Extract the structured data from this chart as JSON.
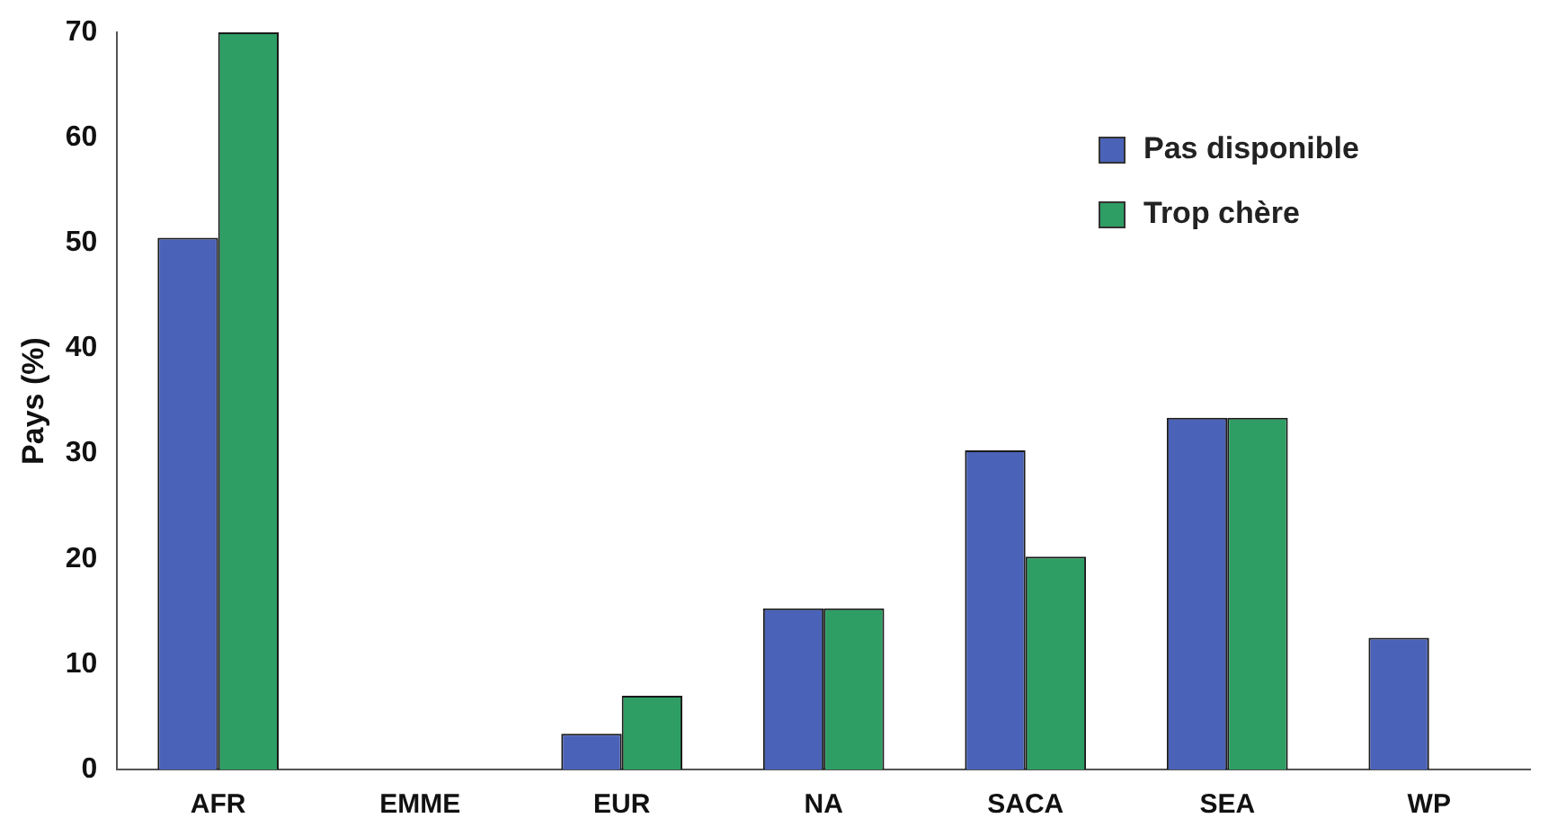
{
  "chart_data": {
    "type": "bar",
    "ylabel": "Pays (%)",
    "categories": [
      "AFR",
      "EMME",
      "EUR",
      "NA",
      "SACA",
      "SEA",
      "WP"
    ],
    "series": [
      {
        "name": "Pas disponible",
        "color": "#4a62b8",
        "values": [
          50.5,
          0,
          3.4,
          15.3,
          30.3,
          33.4,
          12.5
        ]
      },
      {
        "name": "Trop chère",
        "color": "#2e9e64",
        "values": [
          70,
          0,
          7,
          15.3,
          20.2,
          33.4,
          0
        ]
      }
    ],
    "ylim": [
      0,
      70
    ],
    "yticks": [
      0,
      10,
      20,
      30,
      40,
      50,
      60,
      70
    ],
    "grid": false,
    "legend": "top right"
  }
}
